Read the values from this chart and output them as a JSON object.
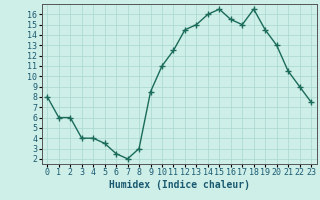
{
  "x": [
    0,
    1,
    2,
    3,
    4,
    5,
    6,
    7,
    8,
    9,
    10,
    11,
    12,
    13,
    14,
    15,
    16,
    17,
    18,
    19,
    20,
    21,
    22,
    23
  ],
  "y": [
    8,
    6,
    6,
    4,
    4,
    3.5,
    2.5,
    2,
    3,
    8.5,
    11,
    12.5,
    14.5,
    15,
    16,
    16.5,
    15.5,
    15,
    16.5,
    14.5,
    13,
    10.5,
    9,
    7.5
  ],
  "line_color": "#1a6b5a",
  "marker": "+",
  "marker_size": 4,
  "bg_color": "#ceeee8",
  "grid_color": "#a8d8d0",
  "xlabel": "Humidex (Indice chaleur)",
  "xlabel_fontsize": 7,
  "ylabel_ticks": [
    2,
    3,
    4,
    5,
    6,
    7,
    8,
    9,
    10,
    11,
    12,
    13,
    14,
    15,
    16
  ],
  "xlim": [
    -0.5,
    23.5
  ],
  "ylim": [
    1.5,
    17.0
  ],
  "tick_fontsize": 6,
  "line_width": 1.0,
  "fig_bg": "#ceeee8",
  "label_color": "#1a5a70"
}
